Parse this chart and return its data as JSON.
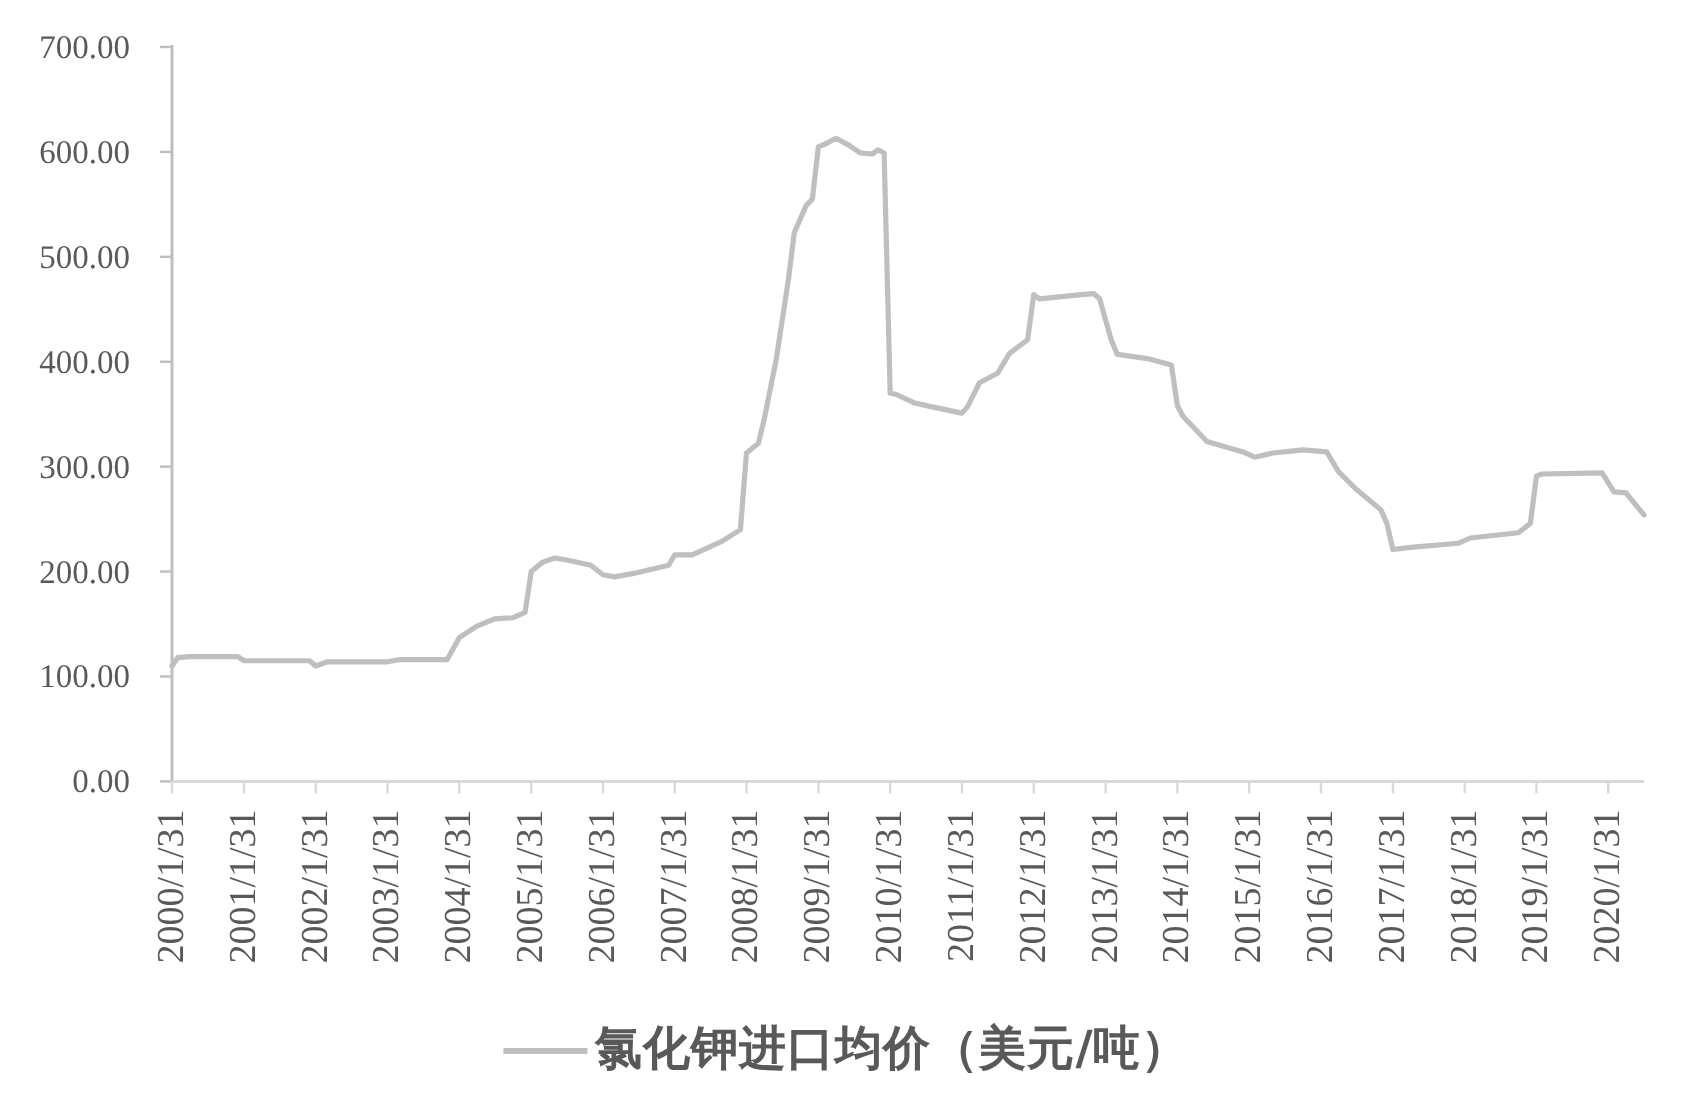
{
  "chart_data": {
    "type": "line",
    "x": [
      "2000-01-31",
      "2000-02-29",
      "2000-04-30",
      "2000-12-31",
      "2001-01-31",
      "2001-07-31",
      "2001-12-31",
      "2002-01-31",
      "2002-03-31",
      "2003-01-31",
      "2003-03-31",
      "2003-11-30",
      "2004-01-31",
      "2004-04-30",
      "2004-07-31",
      "2004-10-31",
      "2004-12-31",
      "2005-01-31",
      "2005-03-31",
      "2005-05-31",
      "2005-07-31",
      "2005-11-30",
      "2006-01-31",
      "2006-03-31",
      "2006-06-30",
      "2006-12-31",
      "2007-01-31",
      "2007-04-30",
      "2007-09-30",
      "2007-12-31",
      "2008-01-31",
      "2008-03-31",
      "2008-04-30",
      "2008-06-30",
      "2008-08-31",
      "2008-09-30",
      "2008-11-30",
      "2008-12-31",
      "2009-01-31",
      "2009-02-28",
      "2009-04-30",
      "2009-06-30",
      "2009-08-31",
      "2009-10-31",
      "2009-11-30",
      "2009-12-31",
      "2010-01-31",
      "2010-02-28",
      "2010-05-31",
      "2010-08-31",
      "2011-01-31",
      "2011-02-28",
      "2011-04-30",
      "2011-07-31",
      "2011-09-30",
      "2011-12-31",
      "2012-01-31",
      "2012-02-29",
      "2012-09-30",
      "2012-11-30",
      "2012-12-31",
      "2013-02-28",
      "2013-03-31",
      "2013-08-31",
      "2013-12-31",
      "2014-01-31",
      "2014-02-28",
      "2014-06-30",
      "2014-12-31",
      "2015-02-28",
      "2015-05-31",
      "2015-10-31",
      "2016-02-29",
      "2016-04-30",
      "2016-07-31",
      "2016-11-30",
      "2016-12-31",
      "2017-01-31",
      "2017-04-30",
      "2017-12-31",
      "2018-02-28",
      "2018-10-31",
      "2018-12-31",
      "2019-01-31",
      "2019-02-28",
      "2019-12-31",
      "2020-02-29",
      "2020-04-30",
      "2020-07-31"
    ],
    "series": [
      {
        "name": "氯化钾进口均价（美元/吨）",
        "color": "#bfbfbf",
        "values": [
          110,
          118,
          119,
          119,
          115,
          115,
          115,
          110,
          114,
          114,
          116,
          116,
          137,
          148,
          155,
          156,
          161,
          200,
          209,
          213,
          211,
          206,
          197,
          195,
          198,
          206,
          216,
          216,
          229,
          240,
          313,
          322,
          345,
          402,
          478,
          523,
          549,
          555,
          605,
          607,
          613,
          607,
          599,
          598,
          602,
          599,
          370,
          369,
          361,
          357,
          351,
          357,
          380,
          389,
          408,
          421,
          464,
          460,
          464,
          465,
          460,
          421,
          407,
          403,
          397,
          358,
          348,
          324,
          314,
          309,
          313,
          316,
          314,
          295,
          278,
          259,
          246,
          221,
          223,
          227,
          232,
          237,
          246,
          291,
          293,
          294,
          276,
          275,
          254
        ]
      }
    ],
    "xlim": [
      "2000-01-31",
      "2020-07-31"
    ],
    "xticks": [
      {
        "value": "2000-01-31",
        "label": "2000/1/31"
      },
      {
        "value": "2001-01-31",
        "label": "2001/1/31"
      },
      {
        "value": "2002-01-31",
        "label": "2002/1/31"
      },
      {
        "value": "2003-01-31",
        "label": "2003/1/31"
      },
      {
        "value": "2004-01-31",
        "label": "2004/1/31"
      },
      {
        "value": "2005-01-31",
        "label": "2005/1/31"
      },
      {
        "value": "2006-01-31",
        "label": "2006/1/31"
      },
      {
        "value": "2007-01-31",
        "label": "2007/1/31"
      },
      {
        "value": "2008-01-31",
        "label": "2008/1/31"
      },
      {
        "value": "2009-01-31",
        "label": "2009/1/31"
      },
      {
        "value": "2010-01-31",
        "label": "2010/1/31"
      },
      {
        "value": "2011-01-31",
        "label": "2011/1/31"
      },
      {
        "value": "2012-01-31",
        "label": "2012/1/31"
      },
      {
        "value": "2013-01-31",
        "label": "2013/1/31"
      },
      {
        "value": "2014-01-31",
        "label": "2014/1/31"
      },
      {
        "value": "2015-01-31",
        "label": "2015/1/31"
      },
      {
        "value": "2016-01-31",
        "label": "2016/1/31"
      },
      {
        "value": "2017-01-31",
        "label": "2017/1/31"
      },
      {
        "value": "2018-01-31",
        "label": "2018/1/31"
      },
      {
        "value": "2019-01-31",
        "label": "2019/1/31"
      },
      {
        "value": "2020-01-31",
        "label": "2020/1/31"
      }
    ],
    "ylim": [
      0,
      700
    ],
    "yticks": [
      {
        "value": 0,
        "label": "0.00"
      },
      {
        "value": 100,
        "label": "100.00"
      },
      {
        "value": 200,
        "label": "200.00"
      },
      {
        "value": 300,
        "label": "300.00"
      },
      {
        "value": 400,
        "label": "400.00"
      },
      {
        "value": 500,
        "label": "500.00"
      },
      {
        "value": 600,
        "label": "600.00"
      },
      {
        "value": 700,
        "label": "700.00"
      }
    ],
    "legend": "bottom"
  }
}
